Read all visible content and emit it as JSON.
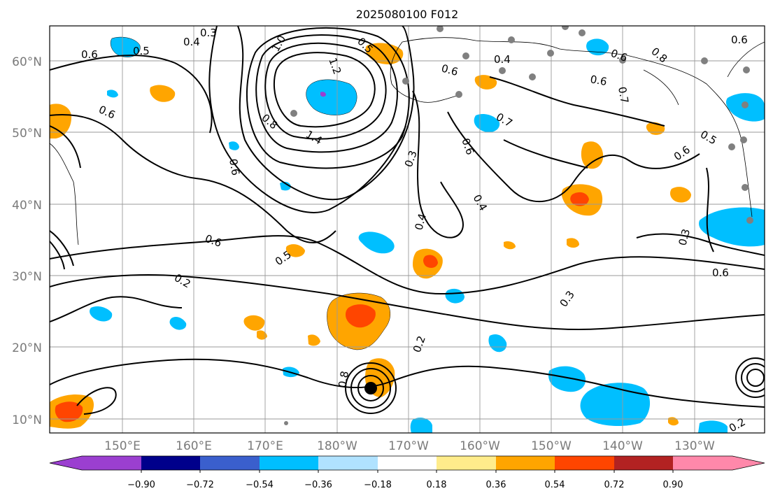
{
  "title": "2025080100 F012",
  "map": {
    "lon_labels": [
      "150°E",
      "160°E",
      "170°E",
      "180°W",
      "170°W",
      "160°W",
      "150°W",
      "140°W",
      "130°W"
    ],
    "lat_labels": [
      "60°N",
      "50°N",
      "40°N",
      "30°N",
      "20°N",
      "10°N"
    ],
    "contour_labels": [
      "0.3",
      "0.4",
      "0.5",
      "0.6",
      "0.6",
      "1.0",
      "1.2",
      "1.4",
      "0.8",
      "0.6",
      "0.5",
      "0.5",
      "0.6",
      "0.2",
      "0.3",
      "0.4",
      "0.4",
      "0.6",
      "0.7",
      "0.7",
      "0.6",
      "0.6",
      "0.3",
      "0.3",
      "0.6",
      "0.5",
      "0.4",
      "0.6",
      "0.6",
      "0.8",
      "0.2",
      "0.6",
      "0.8",
      "0.2"
    ]
  },
  "colorbar": {
    "tick_labels": [
      "−0.90",
      "−0.72",
      "−0.54",
      "−0.36",
      "−0.18",
      "0.18",
      "0.36",
      "0.54",
      "0.72",
      "0.90"
    ],
    "colors": [
      "#9b3fd0",
      "#00008b",
      "#3a5fcd",
      "#00bfff",
      "#b0e2ff",
      "#ffffff",
      "#ffec8b",
      "#ffa500",
      "#ff4500",
      "#b22222",
      "#ff88aa"
    ]
  },
  "fill_colors": {
    "light_blue": "#00bfff",
    "pale_blue": "#b0e2ff",
    "orange": "#ffa500",
    "red_orange": "#ff4500",
    "purple": "#9b3fd0"
  },
  "station_marker_color": "#808080"
}
